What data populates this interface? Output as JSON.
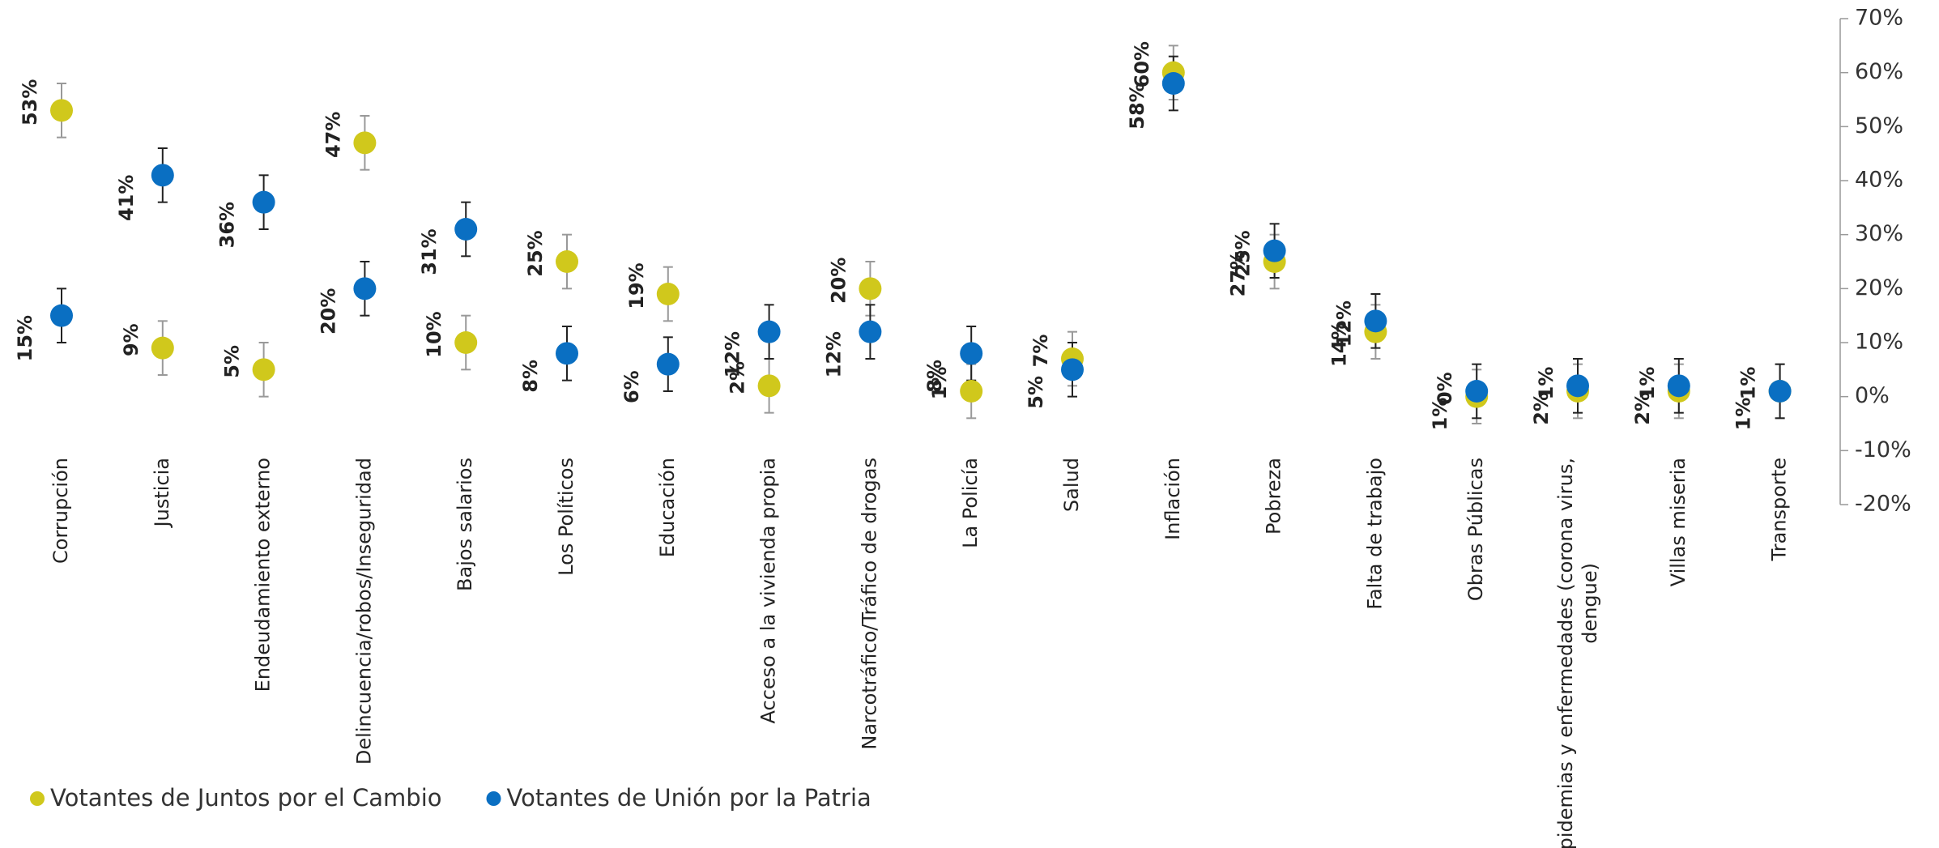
{
  "chart_data": {
    "type": "dot",
    "categories": [
      "Corrupción",
      "Justicia",
      "Endeudamiento externo",
      "Delincuencia/robos/Inseguridad",
      "Bajos salarios",
      "Los Políticos",
      "Educación",
      "Acceso a la vivienda propia",
      "Narcotráfico/Tráfico de drogas",
      "La Policía",
      "Salud",
      "Inflación",
      "Pobreza",
      "Falta de trabajo",
      "Obras Públicas",
      "Epidemias y enfermedades (corona virus, dengue)",
      "Villas miseria",
      "Transporte"
    ],
    "series": [
      {
        "name": "Votantes de Juntos por el Cambio",
        "color": "#d0c81c",
        "error_color": "#999999",
        "values": [
          53,
          9,
          5,
          47,
          10,
          25,
          19,
          2,
          20,
          1,
          7,
          60,
          25,
          12,
          0,
          1,
          1,
          1
        ],
        "errors": [
          5,
          5,
          5,
          5,
          5,
          5,
          5,
          5,
          5,
          5,
          5,
          5,
          5,
          5,
          5,
          5,
          5,
          5
        ],
        "value_labels": [
          "53%",
          "9%",
          "5%",
          "47%",
          "10%",
          "25%",
          "19%",
          "2%",
          "20%",
          "1%",
          "7%",
          "60%",
          "25%",
          "12%",
          "0%",
          "1%",
          "1%",
          "1%"
        ]
      },
      {
        "name": "Votantes de Unión por la Patria",
        "color": "#0a6fc2",
        "error_color": "#222222",
        "values": [
          15,
          41,
          36,
          20,
          31,
          8,
          6,
          12,
          12,
          8,
          5,
          58,
          27,
          14,
          1,
          2,
          2,
          1
        ],
        "errors": [
          5,
          5,
          5,
          5,
          5,
          5,
          5,
          5,
          5,
          5,
          5,
          5,
          5,
          5,
          5,
          5,
          5,
          5
        ],
        "value_labels": [
          "15%",
          "41%",
          "36%",
          "20%",
          "31%",
          "8%",
          "6%",
          "12%",
          "12%",
          "8%",
          "5%",
          "58%",
          "27%",
          "14%",
          "1%",
          "2%",
          "2%",
          "1%"
        ]
      }
    ],
    "ylim": [
      -20,
      70
    ],
    "yticks": [
      {
        "value": 70,
        "label": "70%"
      },
      {
        "value": 60,
        "label": "60%"
      },
      {
        "value": 50,
        "label": "50%"
      },
      {
        "value": 40,
        "label": "40%"
      },
      {
        "value": 30,
        "label": "30%"
      },
      {
        "value": 20,
        "label": "20%"
      },
      {
        "value": 10,
        "label": "10%"
      },
      {
        "value": 0,
        "label": "0%"
      },
      {
        "value": -10,
        "label": "-10%"
      },
      {
        "value": -20,
        "label": "-20%"
      }
    ],
    "y_axis_side": "right",
    "legend": "bottom-left"
  }
}
